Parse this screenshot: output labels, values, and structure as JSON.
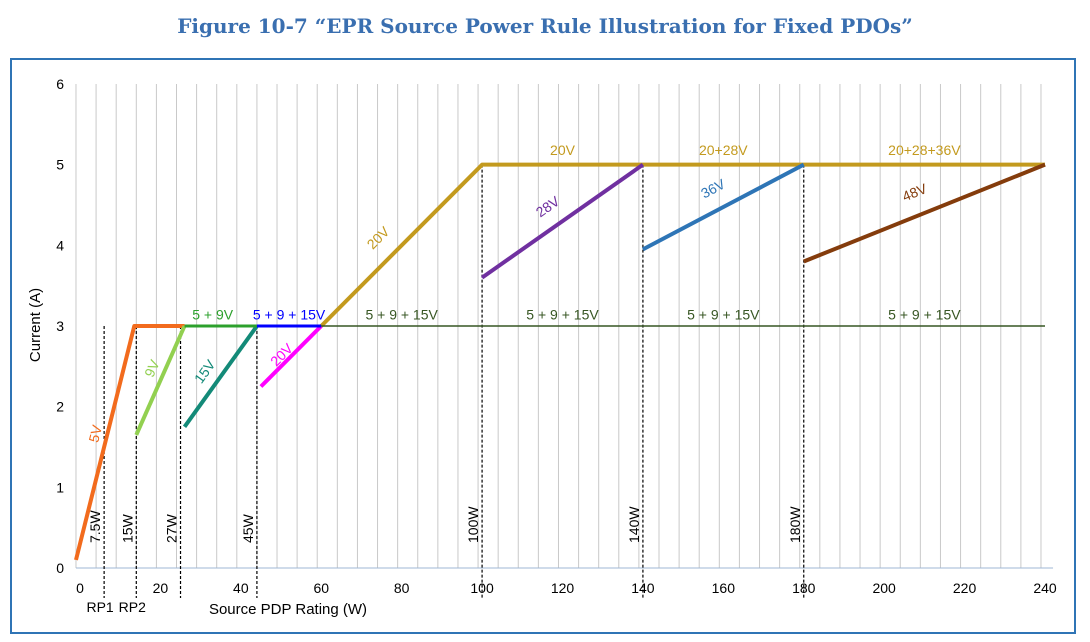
{
  "figure_title": "Figure 10-7 “EPR Source Power Rule Illustration for Fixed PDOs”",
  "chart_data": {
    "type": "line",
    "title": "Figure 10-7 “EPR Source Power Rule Illustration for Fixed PDOs”",
    "xlabel": "Source PDP Rating (W)",
    "ylabel": "Current (A)",
    "xlim": [
      -1,
      242
    ],
    "ylim": [
      0,
      6
    ],
    "xticks": [
      0,
      20,
      40,
      60,
      80,
      100,
      120,
      140,
      160,
      180,
      200,
      220,
      240
    ],
    "yticks": [
      0,
      1,
      2,
      3,
      4,
      5,
      6
    ],
    "grid": "vertical",
    "colors": {
      "5V": "#f26b1d",
      "9V": "#92d050",
      "15V": "#138a78",
      "20V_low": "#ff00ff",
      "20V": "#c39a1e",
      "28V": "#7030a0",
      "36V": "#2e75b6",
      "48V": "#843c0c",
      "ref_9V": "#2ca02c",
      "ref_15V": "#0000ff",
      "ref_all": "#375623"
    },
    "series": [
      {
        "name": "5V",
        "label": "5V",
        "color_key": "5V",
        "points": [
          [
            -1,
            0.1
          ],
          [
            13.5,
            3.0
          ],
          [
            26,
            3.0
          ]
        ]
      },
      {
        "name": "9V",
        "label": "9V",
        "color_key": "9V",
        "points": [
          [
            14,
            1.65
          ],
          [
            26,
            3.0
          ]
        ]
      },
      {
        "name": "15V",
        "label": "15V",
        "color_key": "15V",
        "points": [
          [
            26,
            1.75
          ],
          [
            44,
            3.0
          ]
        ]
      },
      {
        "name": "20V (low)",
        "label": "20V",
        "color_key": "20V_low",
        "points": [
          [
            45,
            2.25
          ],
          [
            60,
            3.0
          ]
        ]
      },
      {
        "name": "20V",
        "label": "20V",
        "color_key": "20V",
        "points": [
          [
            60,
            3.0
          ],
          [
            100,
            5.0
          ],
          [
            240,
            5.0
          ]
        ]
      },
      {
        "name": "28V",
        "label": "28V",
        "color_key": "28V",
        "points": [
          [
            100,
            3.6
          ],
          [
            140,
            5.0
          ]
        ]
      },
      {
        "name": "36V",
        "label": "36V",
        "color_key": "36V",
        "points": [
          [
            140,
            3.95
          ],
          [
            180,
            5.0
          ]
        ]
      },
      {
        "name": "48V",
        "label": "48V",
        "color_key": "48V",
        "points": [
          [
            180,
            3.8
          ],
          [
            240,
            5.0
          ]
        ]
      },
      {
        "name": "5 + 9V",
        "label": "5 + 9V",
        "color_key": "ref_9V",
        "points": [
          [
            26,
            3.0
          ],
          [
            44,
            3.0
          ]
        ]
      },
      {
        "name": "5 + 9 + 15V",
        "label": "5 + 9 + 15V",
        "color_key": "ref_15V",
        "points": [
          [
            44,
            3.0
          ],
          [
            60,
            3.0
          ]
        ]
      },
      {
        "name": "5 + 9 + 15V (reference)",
        "label": "5 + 9 + 15V",
        "color_key": "ref_all",
        "points": [
          [
            60,
            3.0
          ],
          [
            240,
            3.0
          ]
        ]
      }
    ],
    "segment_labels": [
      {
        "text": "20V",
        "x": 120,
        "y": 5.12,
        "color_key": "20V"
      },
      {
        "text": "20+28V",
        "x": 160,
        "y": 5.12,
        "color_key": "20V"
      },
      {
        "text": "20+28+36V",
        "x": 210,
        "y": 5.12,
        "color_key": "20V"
      },
      {
        "text": "5 + 9 + 15V",
        "x": 80,
        "y": 3.08,
        "color_key": "ref_all"
      },
      {
        "text": "5 + 9 + 15V",
        "x": 120,
        "y": 3.08,
        "color_key": "ref_all"
      },
      {
        "text": "5 + 9 + 15V",
        "x": 160,
        "y": 3.08,
        "color_key": "ref_all"
      },
      {
        "text": "5 + 9 + 15V",
        "x": 210,
        "y": 3.08,
        "color_key": "ref_all"
      },
      {
        "text": "5 + 9V",
        "x": 33,
        "y": 3.08,
        "color_key": "ref_9V"
      },
      {
        "text": "5 + 9 + 15V",
        "x": 52,
        "y": 3.08,
        "color_key": "ref_15V"
      }
    ],
    "slope_labels": [
      {
        "text": "5V",
        "x": 5,
        "y": 1.65,
        "color_key": "5V"
      },
      {
        "text": "9V",
        "x": 19,
        "y": 2.45,
        "color_key": "9V"
      },
      {
        "text": "15V",
        "x": 32,
        "y": 2.4,
        "color_key": "15V"
      },
      {
        "text": "20V",
        "x": 51,
        "y": 2.6,
        "color_key": "20V_low"
      },
      {
        "text": "20V",
        "x": 75,
        "y": 4.05,
        "color_key": "20V"
      },
      {
        "text": "28V",
        "x": 117,
        "y": 4.43,
        "color_key": "28V"
      },
      {
        "text": "36V",
        "x": 158,
        "y": 4.65,
        "color_key": "36V"
      },
      {
        "text": "48V",
        "x": 208,
        "y": 4.6,
        "color_key": "48V"
      }
    ],
    "markers": [
      {
        "label": "7.5W",
        "x": 6,
        "top": 3.0
      },
      {
        "label": "15W",
        "x": 14,
        "top": 3.0
      },
      {
        "label": "27W",
        "x": 25,
        "top": 3.0
      },
      {
        "label": "45W",
        "x": 44,
        "top": 3.0
      },
      {
        "label": "100W",
        "x": 100,
        "top": 5.0
      },
      {
        "label": "140W",
        "x": 140,
        "top": 5.0
      },
      {
        "label": "180W",
        "x": 180,
        "top": 5.0
      }
    ],
    "rp_labels": [
      {
        "text": "RP1",
        "x": 5
      },
      {
        "text": "RP2",
        "x": 13
      }
    ]
  }
}
